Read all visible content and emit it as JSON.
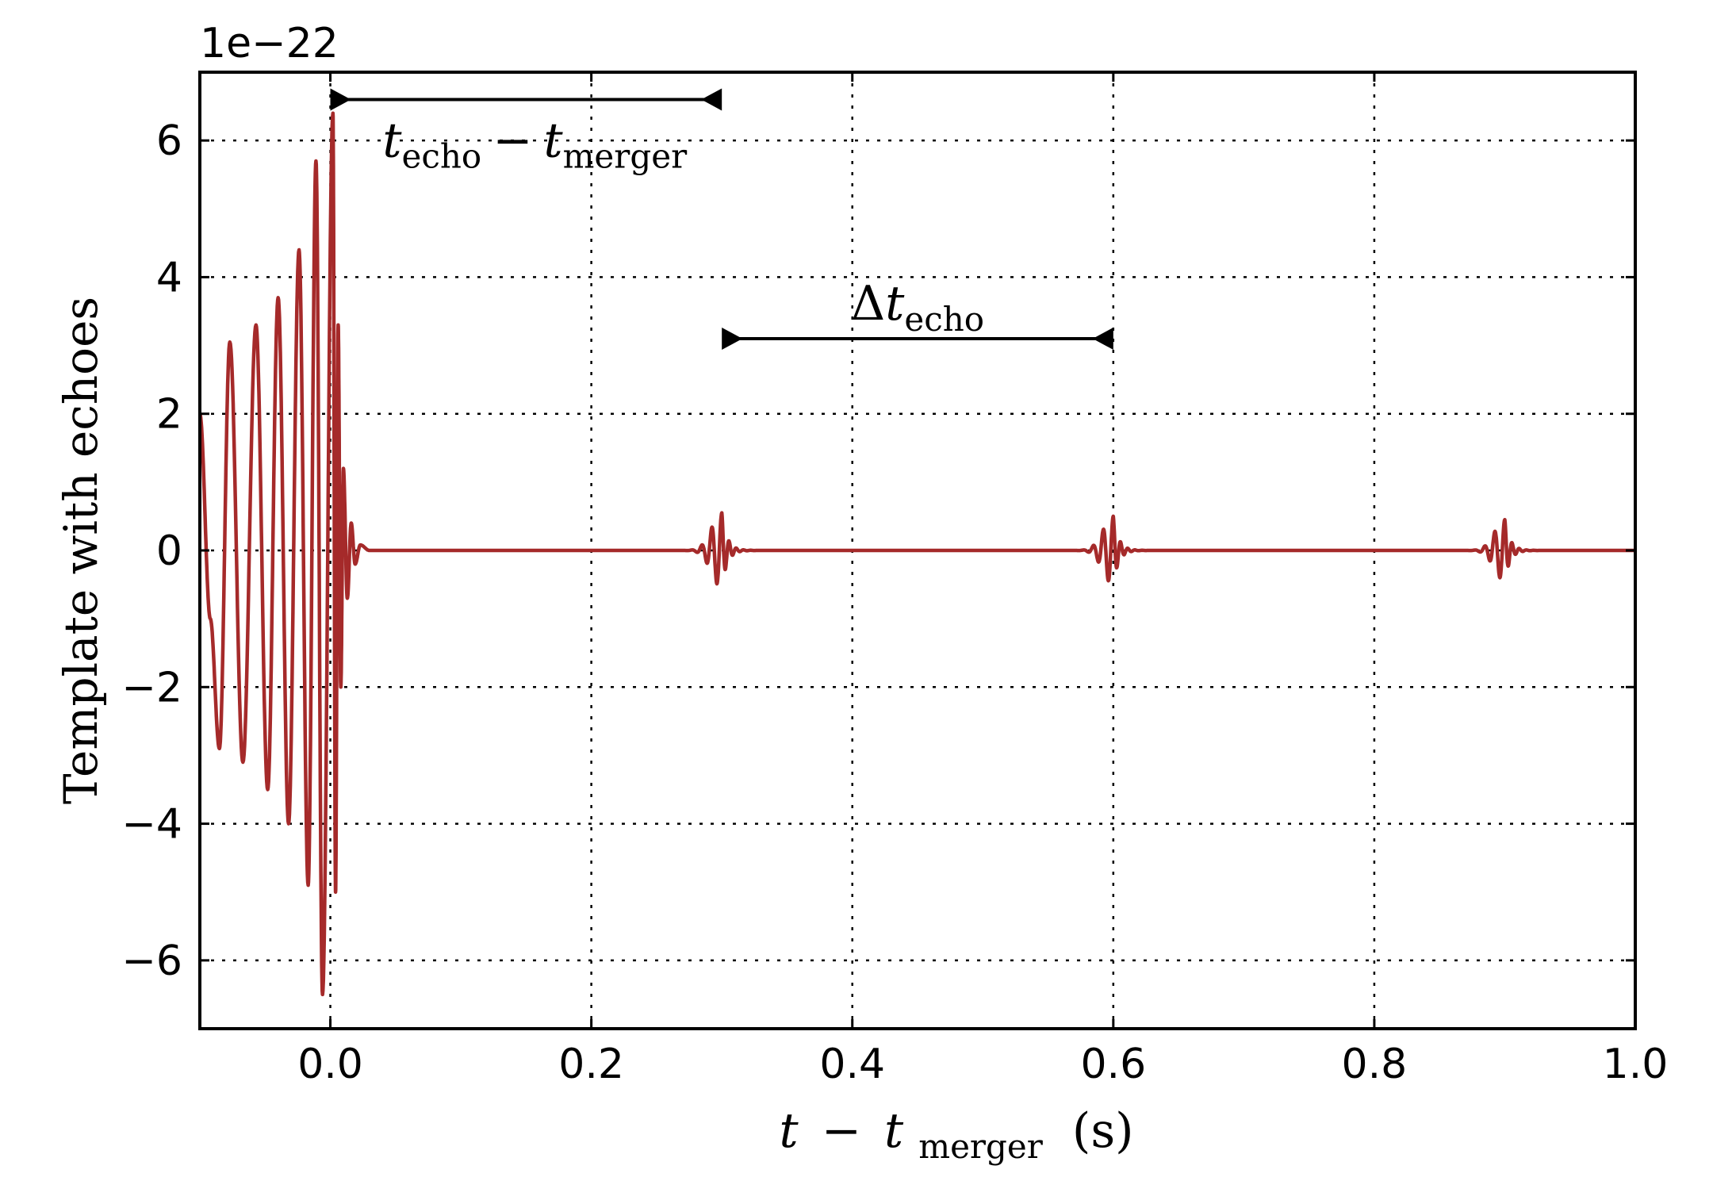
{
  "chart_data": {
    "type": "line",
    "offset_label": "1e−22",
    "xlabel": {
      "var": "t",
      "minus": "−",
      "sub_var": "t",
      "sub": "merger",
      "unit": "(s)"
    },
    "ylabel": "Template with echoes",
    "xlim": [
      -0.1,
      1.0
    ],
    "ylim": [
      -7,
      7
    ],
    "grid": true,
    "x_ticks": [
      0.0,
      0.2,
      0.4,
      0.6,
      0.8,
      1.0
    ],
    "x_tick_labels": [
      "0.0",
      "0.2",
      "0.4",
      "0.6",
      "0.8",
      "1.0"
    ],
    "y_ticks": [
      -6,
      -4,
      -2,
      0,
      2,
      4,
      6
    ],
    "y_tick_labels": [
      "−6",
      "−4",
      "−2",
      "0",
      "2",
      "4",
      "6"
    ],
    "line_color": "#a52a2a",
    "series": [
      {
        "peaks": [
          {
            "x": -0.1,
            "y": 2.0
          },
          {
            "x": -0.092,
            "y": -1.0
          },
          {
            "x": -0.085,
            "y": -2.9
          },
          {
            "x": -0.077,
            "y": 3.05
          },
          {
            "x": -0.067,
            "y": -3.1
          },
          {
            "x": -0.057,
            "y": 3.3
          },
          {
            "x": -0.048,
            "y": -3.5
          },
          {
            "x": -0.04,
            "y": 3.7
          },
          {
            "x": -0.032,
            "y": -4.0
          },
          {
            "x": -0.024,
            "y": 4.4
          },
          {
            "x": -0.017,
            "y": -4.9
          },
          {
            "x": -0.011,
            "y": 5.7
          },
          {
            "x": -0.006,
            "y": -6.5
          },
          {
            "x": 0.002,
            "y": 6.4
          },
          {
            "x": 0.004,
            "y": -5.0
          },
          {
            "x": 0.006,
            "y": 3.3
          },
          {
            "x": 0.008,
            "y": -2.0
          },
          {
            "x": 0.01,
            "y": 1.2
          },
          {
            "x": 0.013,
            "y": -0.7
          },
          {
            "x": 0.016,
            "y": 0.4
          },
          {
            "x": 0.019,
            "y": -0.2
          },
          {
            "x": 0.023,
            "y": 0.08
          },
          {
            "x": 0.03,
            "y": 0.0
          }
        ],
        "echo_times": [
          0.3,
          0.6,
          0.9
        ],
        "echo_amplitudes": [
          0.55,
          0.5,
          0.45
        ]
      }
    ],
    "annotations": [
      {
        "name": "techo-minus-tmerger",
        "x_start": 0.0,
        "x_end": 0.3,
        "y": 6.6,
        "label_var": "t",
        "label_sub1": "echo",
        "label_minus": "−",
        "label_var2": "t",
        "label_sub2": "merger"
      },
      {
        "name": "delta-techo",
        "x_start": 0.3,
        "x_end": 0.6,
        "y": 3.1,
        "label_delta": "Δ",
        "label_var": "t",
        "label_sub": "echo"
      }
    ]
  }
}
